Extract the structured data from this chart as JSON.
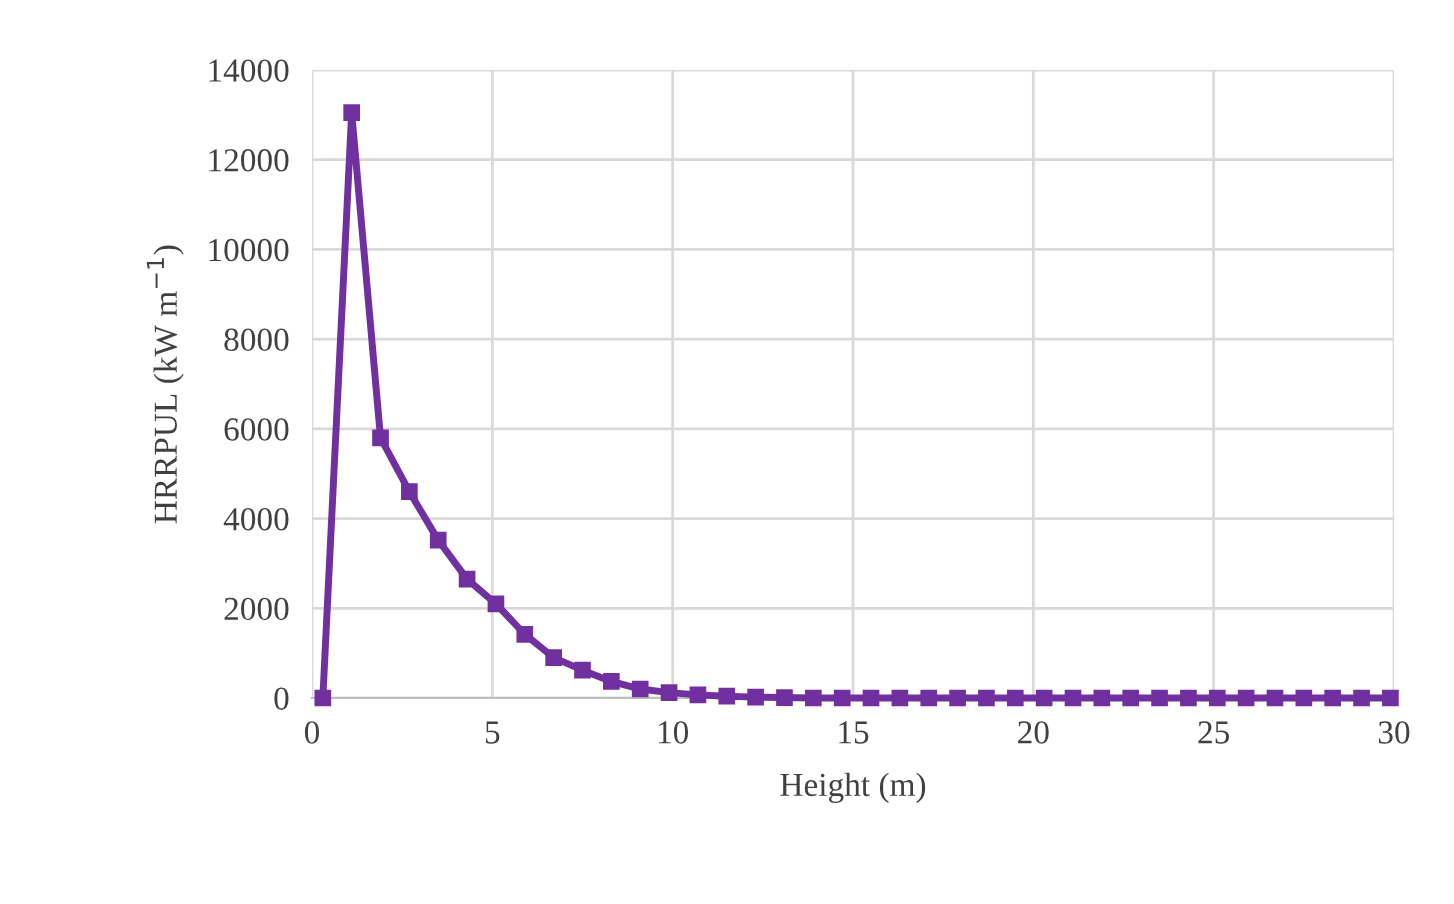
{
  "chart_data": {
    "type": "line",
    "xlabel": "Height (m)",
    "ylabel": "HRRPUL (kW m$^{−1}$)",
    "x": [
      0.3,
      1.1,
      1.9,
      2.7,
      3.5,
      4.3,
      5.1,
      5.9,
      6.7,
      7.5,
      8.3,
      9.1,
      9.9,
      10.7,
      11.5,
      12.3,
      13.1,
      13.9,
      14.7,
      15.5,
      16.3,
      17.1,
      17.9,
      18.7,
      19.5,
      20.3,
      21.1,
      21.9,
      22.7,
      23.5,
      24.3,
      25.1,
      25.9,
      26.7,
      27.5,
      28.3,
      29.1,
      29.9
    ],
    "series": [
      {
        "color": "#7030a0",
        "values": [
          0,
          13050,
          5800,
          4600,
          3520,
          2650,
          2100,
          1420,
          900,
          620,
          370,
          200,
          120,
          70,
          40,
          20,
          10,
          0,
          0,
          0,
          0,
          0,
          0,
          0,
          0,
          0,
          0,
          0,
          0,
          0,
          0,
          0,
          0,
          0,
          0,
          0,
          0,
          0
        ]
      }
    ],
    "xlim": [
      0,
      30
    ],
    "xticks": [
      0,
      5,
      10,
      15,
      20,
      25,
      30
    ],
    "ylim": [
      0,
      14000
    ],
    "yticks": [
      0,
      2000,
      4000,
      6000,
      8000,
      10000,
      12000,
      14000
    ],
    "grid": true,
    "marker": "square",
    "line_style": "solid",
    "legend": false
  }
}
